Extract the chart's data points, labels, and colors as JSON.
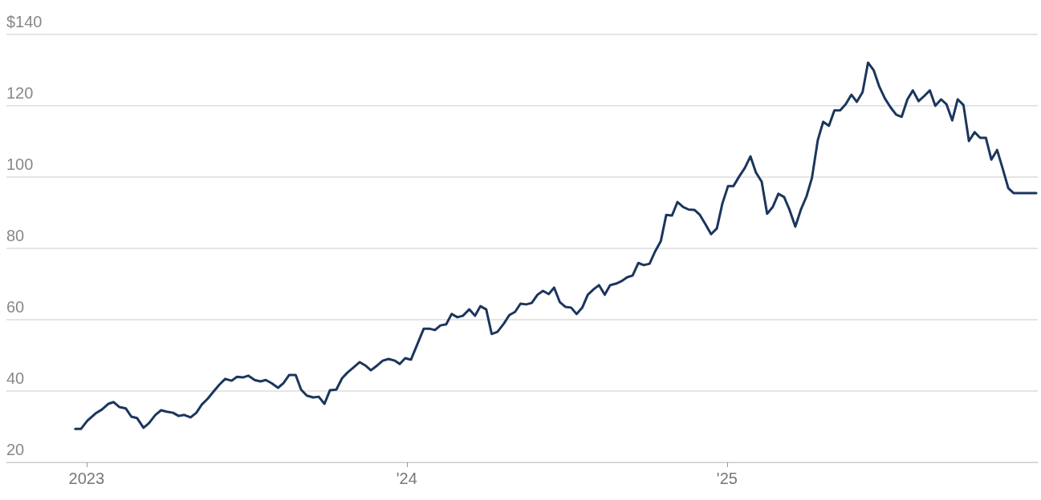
{
  "chart_data": {
    "type": "line",
    "x": [
      2022.965,
      2022.983,
      2023.003,
      2023.028,
      2023.048,
      2023.068,
      2023.085,
      2023.103,
      2023.123,
      2023.14,
      2023.158,
      2023.178,
      2023.195,
      2023.215,
      2023.233,
      2023.25,
      2023.27,
      2023.288,
      2023.305,
      2023.325,
      2023.343,
      2023.36,
      2023.378,
      2023.398,
      2023.415,
      2023.433,
      2023.453,
      2023.47,
      2023.488,
      2023.505,
      2023.525,
      2023.543,
      2023.56,
      2023.578,
      2023.598,
      2023.615,
      2023.633,
      2023.653,
      2023.67,
      2023.688,
      2023.708,
      2023.725,
      2023.743,
      2023.76,
      2023.78,
      2023.798,
      2023.815,
      2023.835,
      2023.853,
      2023.87,
      2023.888,
      2023.908,
      2023.925,
      2023.943,
      2023.963,
      2023.978,
      2023.995,
      2024.013,
      2024.053,
      2024.07,
      2024.088,
      2024.105,
      2024.123,
      2024.14,
      2024.158,
      2024.175,
      2024.195,
      2024.213,
      2024.23,
      2024.248,
      2024.265,
      2024.283,
      2024.303,
      2024.32,
      2024.338,
      2024.355,
      2024.373,
      2024.39,
      2024.408,
      2024.425,
      2024.443,
      2024.46,
      2024.478,
      2024.495,
      2024.513,
      2024.53,
      2024.548,
      2024.565,
      2024.583,
      2024.6,
      2024.618,
      2024.635,
      2024.653,
      2024.67,
      2024.688,
      2024.705,
      2024.723,
      2024.74,
      2024.758,
      2024.775,
      2024.793,
      2024.81,
      2024.828,
      2024.845,
      2024.863,
      2024.88,
      2024.898,
      2024.915,
      2024.933,
      2024.95,
      2024.968,
      2024.985,
      2025.003,
      2025.02,
      2025.038,
      2025.055,
      2025.073,
      2025.09,
      2025.108,
      2025.125,
      2025.143,
      2025.16,
      2025.178,
      2025.195,
      2025.213,
      2025.23,
      2025.248,
      2025.265,
      2025.283,
      2025.3,
      2025.318,
      2025.335,
      2025.353,
      2025.37,
      2025.388,
      2025.405,
      2025.423,
      2025.44,
      2025.458,
      2025.475,
      2025.493,
      2025.51,
      2025.528,
      2025.545,
      2025.563,
      2025.58,
      2025.598,
      2025.615,
      2025.633,
      2025.65,
      2025.668,
      2025.685,
      2025.703,
      2025.72,
      2025.738,
      2025.755,
      2025.773,
      2025.79,
      2025.808,
      2025.825,
      2025.843,
      2025.86,
      2025.878,
      2025.895,
      2025.913,
      2025.94,
      2025.965
    ],
    "series": [
      {
        "color": "#1b365d",
        "values": [
          29.4,
          29.4,
          31.7,
          33.7,
          34.8,
          36.4,
          36.9,
          35.5,
          35.1,
          32.8,
          32.4,
          29.7,
          31.0,
          33.3,
          34.6,
          34.2,
          33.9,
          33.0,
          33.3,
          32.6,
          33.9,
          36.2,
          37.8,
          40.0,
          41.8,
          43.4,
          42.9,
          44.0,
          43.8,
          44.3,
          43.1,
          42.7,
          43.1,
          42.2,
          40.9,
          42.2,
          44.5,
          44.5,
          40.4,
          38.7,
          38.2,
          38.4,
          36.4,
          40.2,
          40.4,
          43.6,
          45.2,
          46.7,
          48.1,
          47.2,
          45.8,
          47.2,
          48.5,
          49.0,
          48.5,
          47.6,
          49.2,
          48.8,
          57.5,
          57.5,
          57.1,
          58.4,
          58.7,
          61.6,
          60.7,
          61.1,
          62.9,
          61.1,
          63.8,
          62.9,
          56.0,
          56.6,
          58.9,
          61.3,
          62.2,
          64.5,
          64.3,
          64.7,
          67.0,
          68.1,
          67.2,
          69.0,
          64.9,
          63.6,
          63.4,
          61.6,
          63.4,
          67.0,
          68.5,
          69.7,
          67.0,
          69.7,
          70.1,
          70.8,
          71.9,
          72.4,
          75.9,
          75.3,
          75.7,
          79.1,
          82.0,
          89.4,
          89.2,
          93.0,
          91.6,
          90.9,
          90.8,
          89.4,
          86.7,
          84.0,
          85.6,
          92.5,
          97.5,
          97.5,
          100.2,
          102.5,
          105.8,
          101.3,
          98.7,
          89.7,
          91.7,
          95.3,
          94.4,
          90.8,
          86.1,
          90.8,
          94.6,
          99.8,
          110.3,
          115.5,
          114.4,
          118.7,
          118.7,
          120.4,
          123.1,
          121.1,
          123.8,
          132.1,
          129.9,
          125.4,
          122.0,
          119.6,
          117.5,
          116.9,
          121.8,
          124.3,
          121.3,
          122.7,
          124.3,
          120.0,
          121.8,
          120.4,
          115.9,
          121.8,
          120.2,
          110.1,
          112.6,
          111.0,
          111.0,
          104.9,
          107.6,
          102.5,
          96.9,
          95.5,
          95.5,
          95.5,
          95.5
        ]
      }
    ],
    "xlim": [
      2022.75,
      2025.97
    ],
    "xticks": [
      {
        "value": 2023,
        "label": "2023"
      },
      {
        "value": 2024,
        "label": "'24"
      },
      {
        "value": 2025,
        "label": "'25"
      }
    ],
    "ylim": [
      20,
      140
    ],
    "yticks": [
      20,
      40,
      60,
      80,
      100,
      120,
      {
        "value": 140,
        "label": "$140"
      }
    ],
    "grid": "y",
    "marker": "none",
    "line_style": "solid"
  }
}
